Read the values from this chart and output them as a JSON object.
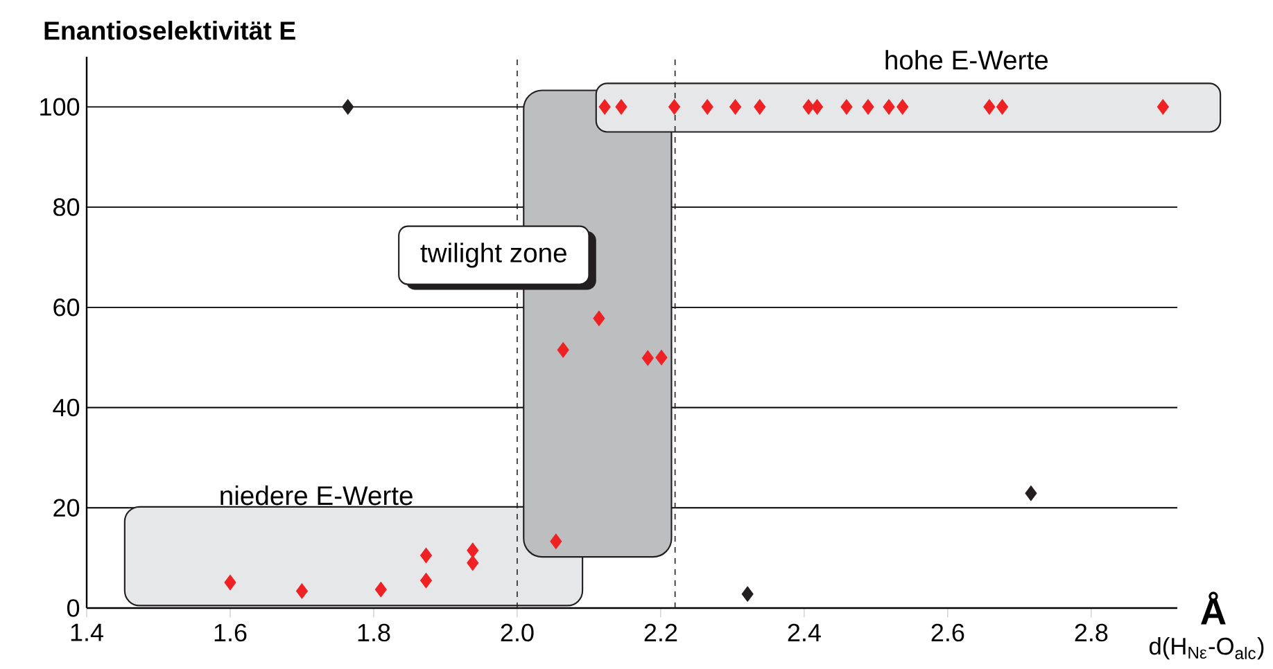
{
  "chart_data": {
    "type": "scatter",
    "ylabel": "Enantioselektivität E",
    "xlabel": "d(H$_{Nε}$-O$_{alc}$)",
    "annotations": [
      "twilight zone",
      "hohe E-Werte",
      "niedere E-Werte",
      "Å"
    ],
    "xlim": [
      1.4,
      2.92
    ],
    "xticks": [
      {
        "value": 1.4,
        "label": "1.4"
      },
      {
        "value": 1.6,
        "label": "1.6"
      },
      {
        "value": 1.8,
        "label": "1.8"
      },
      {
        "value": 2.0,
        "label": "2.0"
      },
      {
        "value": 2.2,
        "label": "2.2"
      },
      {
        "value": 2.4,
        "label": "2.4"
      },
      {
        "value": 2.6,
        "label": "2.6"
      },
      {
        "value": 2.8,
        "label": "2.8"
      }
    ],
    "ylim": [
      0,
      110
    ],
    "yticks": [
      0,
      20,
      40,
      60,
      80,
      100
    ],
    "grid": "y",
    "marker": "diamond",
    "ref_lines": [
      {
        "axis": "x",
        "value": 2.0,
        "color": "#231f20",
        "line_style": "dashed"
      },
      {
        "axis": "x",
        "value": 2.22,
        "color": "#231f20",
        "line_style": "dashed"
      }
    ],
    "series": [
      {
        "color": "#ee2224",
        "x": [
          1.6,
          1.7,
          1.81,
          1.873,
          1.873,
          1.938,
          1.938,
          2.054,
          2.064,
          2.114,
          2.182,
          2.201,
          2.122,
          2.145,
          2.219,
          2.265,
          2.304,
          2.338,
          2.406,
          2.418,
          2.459,
          2.489,
          2.518,
          2.537,
          2.658,
          2.676,
          2.9
        ],
        "values": [
          5.1,
          3.4,
          3.7,
          10.5,
          5.5,
          11.5,
          9.0,
          13.3,
          51.5,
          57.8,
          49.9,
          50,
          100,
          100,
          100,
          100,
          100,
          100,
          100,
          100,
          100,
          100,
          100,
          100,
          100,
          100,
          100
        ]
      },
      {
        "color": "#231f20",
        "x": [
          1.764,
          2.321,
          2.716
        ],
        "values": [
          100,
          2.8,
          22.9
        ]
      }
    ]
  }
}
